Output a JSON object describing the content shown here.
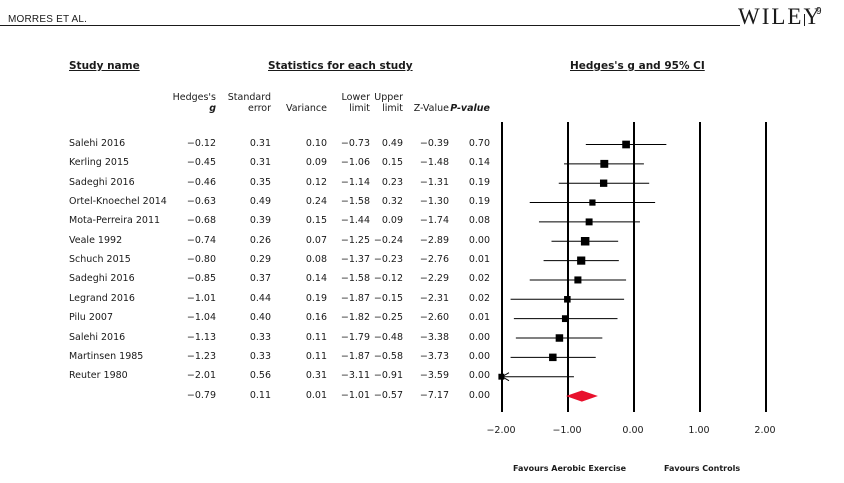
{
  "header": {
    "running_head": "MORRES ET AL.",
    "publisher": "WILEY",
    "page_number": "9"
  },
  "table": {
    "study_col_title": "Study name",
    "stats_group_title": "Statistics for each study",
    "ci_title": "Hedges's g and 95% CI",
    "columns": [
      {
        "line1": "Hedges's",
        "line2": "g"
      },
      {
        "line1": "Standard",
        "line2": "error"
      },
      {
        "line1": "",
        "line2": "Variance"
      },
      {
        "line1": "Lower",
        "line2": "limit"
      },
      {
        "line1": "Upper",
        "line2": "limit"
      },
      {
        "line1": "",
        "line2": "Z-Value"
      },
      {
        "line1": "",
        "line2": "P-value"
      }
    ],
    "rows": [
      {
        "study": "Salehi 2016",
        "values": [
          "−0.12",
          "0.31",
          "0.10",
          "−0.73",
          "0.49",
          "−0.39",
          "0.70"
        ]
      },
      {
        "study": "Kerling 2015",
        "values": [
          "−0.45",
          "0.31",
          "0.09",
          "−1.06",
          "0.15",
          "−1.48",
          "0.14"
        ]
      },
      {
        "study": "Sadeghi 2016",
        "values": [
          "−0.46",
          "0.35",
          "0.12",
          "−1.14",
          "0.23",
          "−1.31",
          "0.19"
        ]
      },
      {
        "study": "Ortel-Knoechel 2014",
        "values": [
          "−0.63",
          "0.49",
          "0.24",
          "−1.58",
          "0.32",
          "−1.30",
          "0.19"
        ]
      },
      {
        "study": "Mota-Perreira 2011",
        "values": [
          "−0.68",
          "0.39",
          "0.15",
          "−1.44",
          "0.09",
          "−1.74",
          "0.08"
        ]
      },
      {
        "study": "Veale 1992",
        "values": [
          "−0.74",
          "0.26",
          "0.07",
          "−1.25",
          "−0.24",
          "−2.89",
          "0.00"
        ]
      },
      {
        "study": "Schuch 2015",
        "values": [
          "−0.80",
          "0.29",
          "0.08",
          "−1.37",
          "−0.23",
          "−2.76",
          "0.01"
        ]
      },
      {
        "study": "Sadeghi 2016",
        "values": [
          "−0.85",
          "0.37",
          "0.14",
          "−1.58",
          "−0.12",
          "−2.29",
          "0.02"
        ]
      },
      {
        "study": "Legrand 2016",
        "values": [
          "−1.01",
          "0.44",
          "0.19",
          "−1.87",
          "−0.15",
          "−2.31",
          "0.02"
        ]
      },
      {
        "study": "Pilu 2007",
        "values": [
          "−1.04",
          "0.40",
          "0.16",
          "−1.82",
          "−0.25",
          "−2.60",
          "0.01"
        ]
      },
      {
        "study": "Salehi 2016",
        "values": [
          "−1.13",
          "0.33",
          "0.11",
          "−1.79",
          "−0.48",
          "−3.38",
          "0.00"
        ]
      },
      {
        "study": "Martinsen 1985",
        "values": [
          "−1.23",
          "0.33",
          "0.11",
          "−1.87",
          "−0.58",
          "−3.73",
          "0.00"
        ]
      },
      {
        "study": "Reuter 1980",
        "values": [
          "−2.01",
          "0.56",
          "0.31",
          "−3.11",
          "−0.91",
          "−3.59",
          "0.00"
        ]
      },
      {
        "study": "",
        "values": [
          "−0.79",
          "0.11",
          "0.01",
          "−1.01",
          "−0.57",
          "−7.17",
          "0.00"
        ]
      }
    ]
  },
  "chart_data": {
    "type": "forest",
    "x_ticks": [
      -2,
      -1,
      0,
      1,
      2
    ],
    "x_tick_labels": [
      "−2.00",
      "−1.00",
      "0.00",
      "1.00",
      "2.00"
    ],
    "xlim": [
      -2,
      2
    ],
    "left_label": "Favours Aerobic Exercise",
    "right_label": "Favours Controls",
    "colors": {
      "summary": "#e8112d",
      "marker": "#000000"
    },
    "studies": [
      {
        "study": "Salehi 2016",
        "g": -0.12,
        "lower": -0.73,
        "upper": 0.49,
        "variance": 0.1
      },
      {
        "study": "Kerling 2015",
        "g": -0.45,
        "lower": -1.06,
        "upper": 0.15,
        "variance": 0.09
      },
      {
        "study": "Sadeghi 2016",
        "g": -0.46,
        "lower": -1.14,
        "upper": 0.23,
        "variance": 0.12
      },
      {
        "study": "Ortel-Knoechel 2014",
        "g": -0.63,
        "lower": -1.58,
        "upper": 0.32,
        "variance": 0.24
      },
      {
        "study": "Mota-Perreira 2011",
        "g": -0.68,
        "lower": -1.44,
        "upper": 0.09,
        "variance": 0.15
      },
      {
        "study": "Veale 1992",
        "g": -0.74,
        "lower": -1.25,
        "upper": -0.24,
        "variance": 0.07
      },
      {
        "study": "Schuch 2015",
        "g": -0.8,
        "lower": -1.37,
        "upper": -0.23,
        "variance": 0.08
      },
      {
        "study": "Sadeghi 2016",
        "g": -0.85,
        "lower": -1.58,
        "upper": -0.12,
        "variance": 0.14
      },
      {
        "study": "Legrand 2016",
        "g": -1.01,
        "lower": -1.87,
        "upper": -0.15,
        "variance": 0.19
      },
      {
        "study": "Pilu 2007",
        "g": -1.04,
        "lower": -1.82,
        "upper": -0.25,
        "variance": 0.16
      },
      {
        "study": "Salehi 2016",
        "g": -1.13,
        "lower": -1.79,
        "upper": -0.48,
        "variance": 0.11
      },
      {
        "study": "Martinsen 1985",
        "g": -1.23,
        "lower": -1.87,
        "upper": -0.58,
        "variance": 0.11
      },
      {
        "study": "Reuter 1980",
        "g": -2.01,
        "lower": -3.11,
        "upper": -0.91,
        "variance": 0.31
      }
    ],
    "summary": {
      "g": -0.79,
      "lower": -1.01,
      "upper": -0.57
    }
  }
}
